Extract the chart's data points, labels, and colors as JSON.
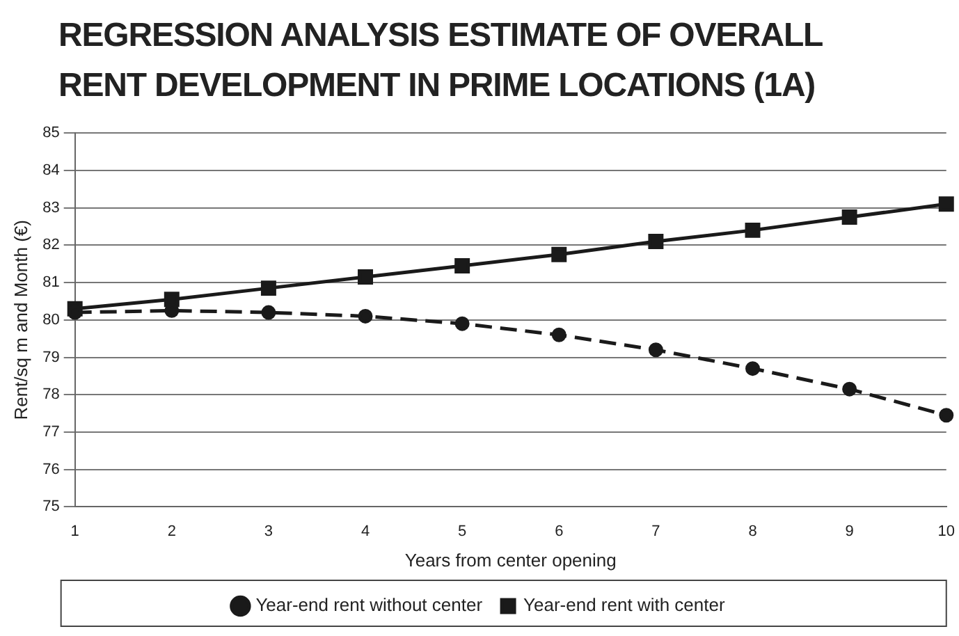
{
  "chart_data": {
    "type": "line",
    "title": "REGRESSION ANALYSIS ESTIMATE OF OVERALL RENT DEVELOPMENT IN PRIME LOCATIONS (1A)",
    "xlabel": "Years from center opening",
    "ylabel": "Rent/sq m and Month (€)",
    "categories": [
      "1",
      "2",
      "3",
      "4",
      "5",
      "6",
      "7",
      "8",
      "9",
      "10"
    ],
    "series": [
      {
        "name": "Year-end rent without center",
        "color": "#1a1a1a",
        "marker": "circle",
        "line_style": "dashed",
        "values": [
          80.2,
          80.25,
          80.2,
          80.1,
          79.9,
          79.6,
          79.2,
          78.7,
          78.15,
          77.45
        ]
      },
      {
        "name": "Year-end rent with center",
        "color": "#1a1a1a",
        "marker": "square",
        "line_style": "solid",
        "values": [
          80.3,
          80.55,
          80.85,
          81.15,
          81.45,
          81.75,
          82.1,
          82.4,
          82.75,
          83.1
        ]
      }
    ],
    "ylim": [
      75,
      85
    ],
    "yticks": [
      75,
      76,
      77,
      78,
      79,
      80,
      81,
      82,
      83,
      84,
      85
    ],
    "grid": "y",
    "legend": "bottom"
  }
}
